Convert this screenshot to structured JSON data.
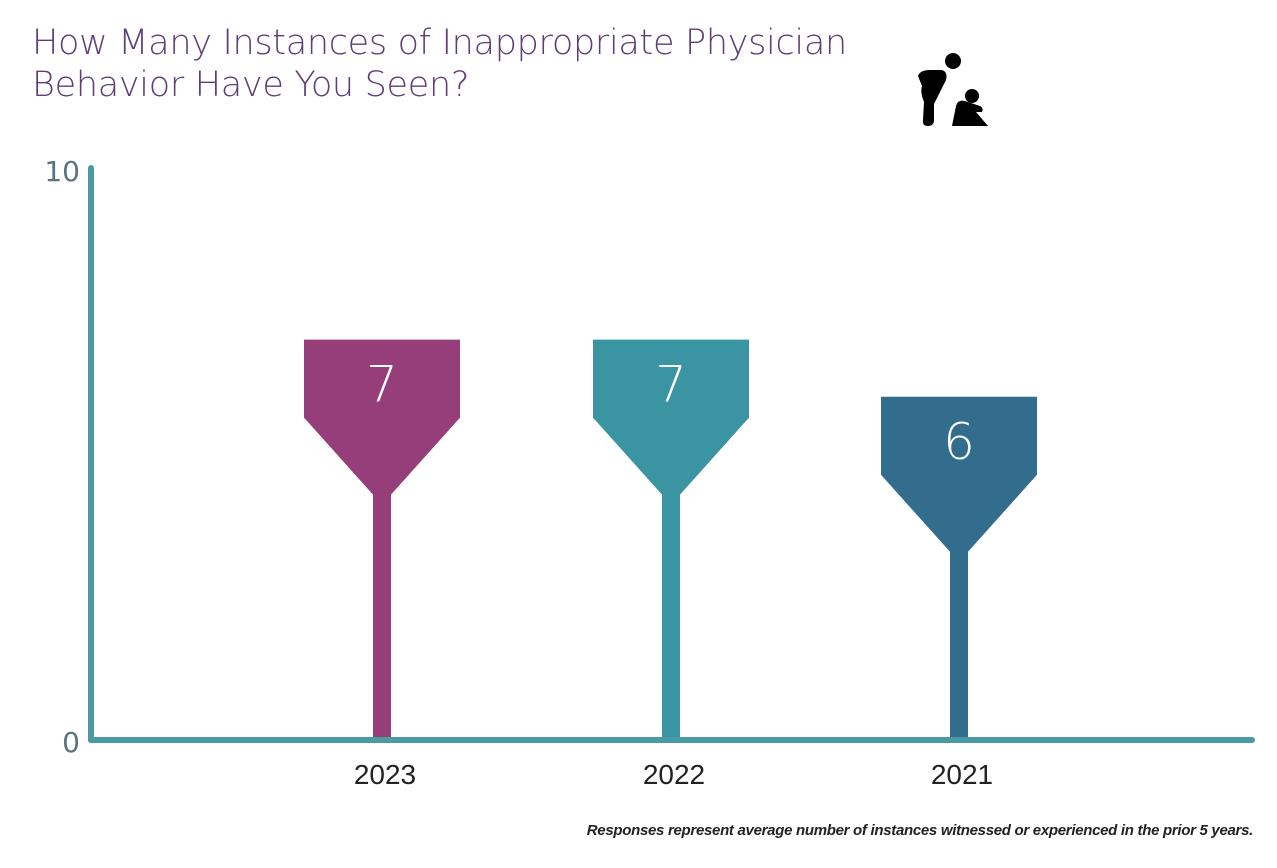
{
  "chart_data": {
    "type": "bar",
    "title": "How Many Instances of Inappropriate Physician Behavior Have You Seen?",
    "categories": [
      "2023",
      "2022",
      "2021"
    ],
    "values": [
      7,
      7,
      6
    ],
    "colors": [
      "#963e79",
      "#3a94a2",
      "#336d8e"
    ],
    "axis_color": "#4a9aa3",
    "ylim": [
      0,
      10
    ],
    "yticks": [
      "0",
      "10"
    ],
    "grid": false,
    "note": "Responses represent average number of instances witnessed or experienced in the prior 5 years."
  },
  "icon": "person-bending-over-seated-person-icon"
}
